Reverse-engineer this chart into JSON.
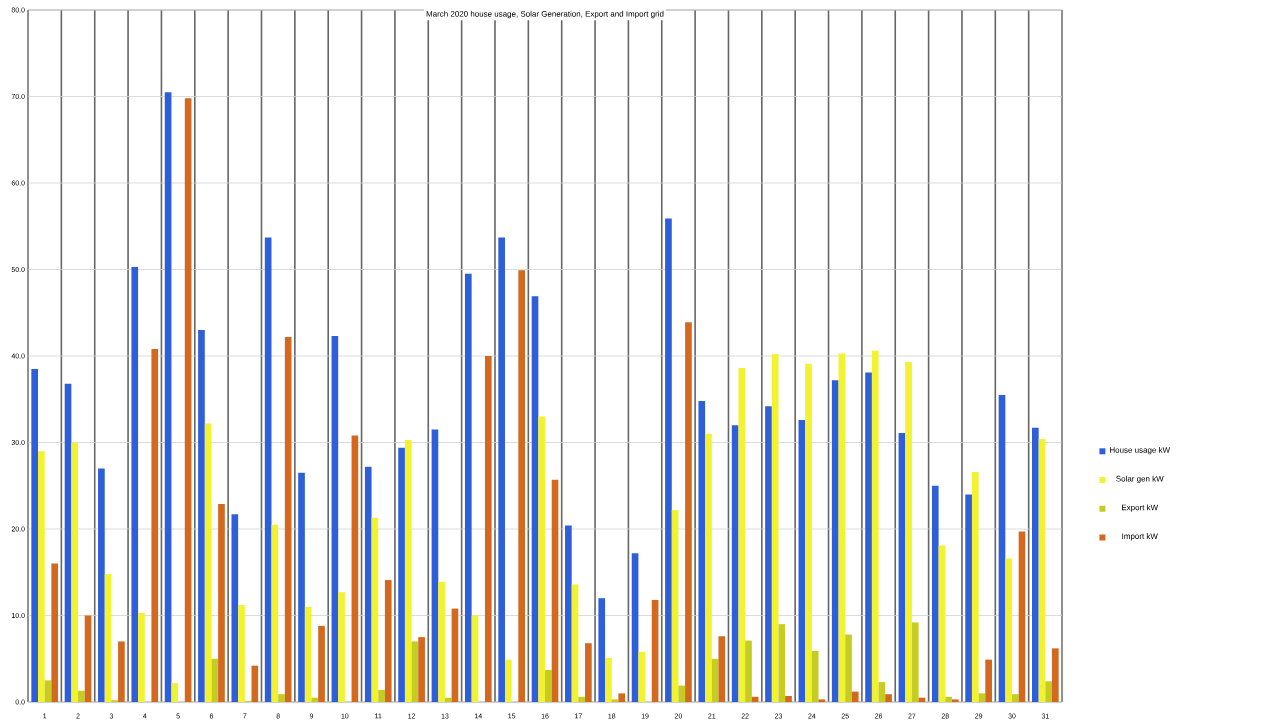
{
  "chart_data": {
    "type": "bar",
    "title": "March 2020 house usage, Solar Generation, Export and Import grid",
    "categories": [
      "1",
      "2",
      "3",
      "4",
      "5",
      "6",
      "7",
      "8",
      "9",
      "10",
      "11",
      "12",
      "13",
      "14",
      "15",
      "16",
      "17",
      "18",
      "19",
      "20",
      "21",
      "22",
      "23",
      "24",
      "25",
      "26",
      "27",
      "28",
      "29",
      "30",
      "31"
    ],
    "series": [
      {
        "name": "House usage kW",
        "color": "#2e5fd8",
        "values": [
          38.5,
          36.8,
          27,
          50.3,
          70.5,
          43,
          21.7,
          53.7,
          26.5,
          42.3,
          27.2,
          29.4,
          31.5,
          49.5,
          53.7,
          46.9,
          20.4,
          12,
          17.2,
          55.9,
          34.8,
          32,
          34.2,
          32.6,
          37.2,
          38.1,
          31.1,
          25,
          24,
          35.5,
          31.7
        ]
      },
      {
        "name": "Solar gen kW",
        "color": "#f2f230",
        "values": [
          29,
          30,
          14.8,
          10.3,
          2.2,
          32.2,
          11.2,
          20.5,
          11,
          12.7,
          21.3,
          30.3,
          13.9,
          10,
          4.9,
          33,
          13.6,
          5.1,
          5.8,
          22.2,
          31,
          38.6,
          40.2,
          39.1,
          40.3,
          40.6,
          39.3,
          18.1,
          26.6,
          16.6,
          30.4
        ]
      },
      {
        "name": "Export kW",
        "color": "#c5cc24",
        "values": [
          2.5,
          1.3,
          0.2,
          0,
          0,
          5,
          0.1,
          0.9,
          0.5,
          0,
          1.4,
          7,
          0.5,
          0,
          0,
          3.7,
          0.6,
          0.3,
          0,
          1.9,
          5,
          7.1,
          9,
          5.9,
          7.8,
          2.3,
          9.2,
          0.6,
          1,
          0.9,
          2.4
        ]
      },
      {
        "name": "Import kW",
        "color": "#d2691e",
        "values": [
          16,
          10,
          7,
          40.8,
          69.8,
          22.9,
          4.2,
          42.2,
          8.8,
          30.8,
          14.1,
          7.5,
          10.8,
          40,
          49.9,
          25.7,
          6.8,
          1,
          11.8,
          43.9,
          7.6,
          0.6,
          0.7,
          0.3,
          1.2,
          0.9,
          0.5,
          0.3,
          4.9,
          19.7,
          6.2
        ]
      }
    ],
    "ylim": [
      0,
      80
    ],
    "yticks": [
      {
        "value": 0,
        "label": "0.0"
      },
      {
        "value": 10,
        "label": "10.0"
      },
      {
        "value": 20,
        "label": "20.0"
      },
      {
        "value": 30,
        "label": "30.0"
      },
      {
        "value": 40,
        "label": "40.0"
      },
      {
        "value": 50,
        "label": "50.0"
      },
      {
        "value": 60,
        "label": "60.0"
      },
      {
        "value": 70,
        "label": "70.0"
      },
      {
        "value": 80,
        "label": "80.0"
      }
    ],
    "grid": true,
    "legend": "right"
  }
}
